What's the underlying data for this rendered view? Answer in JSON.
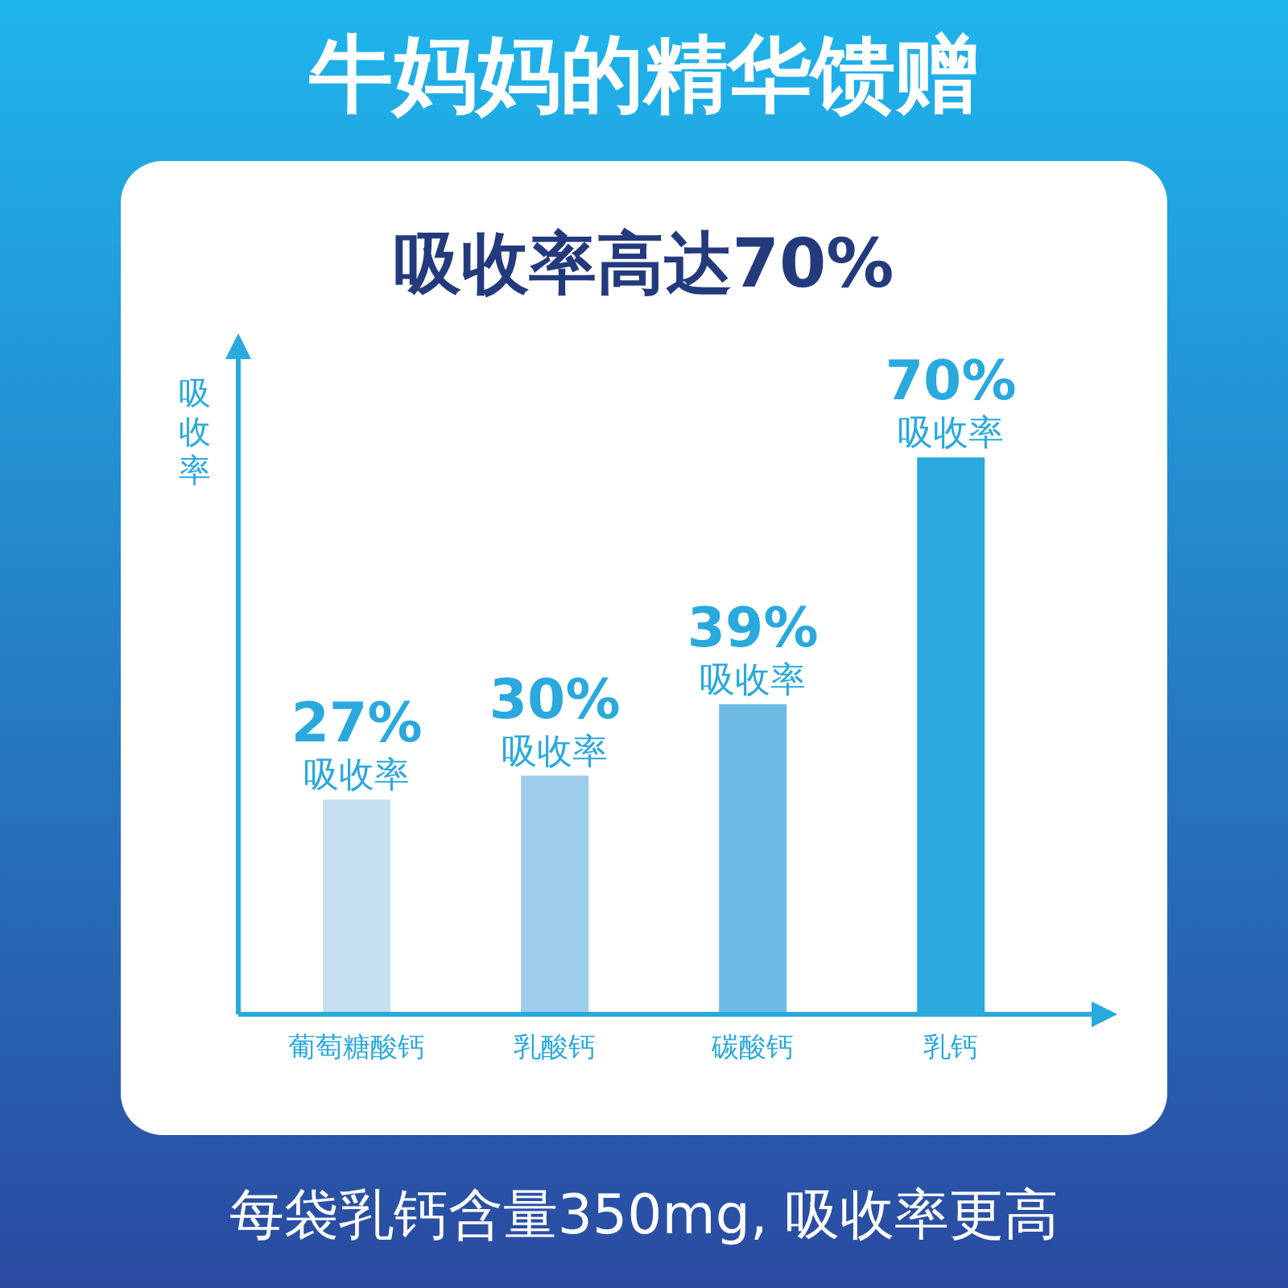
{
  "chart_data": {
    "type": "bar",
    "title": "牛妈妈的精华馈赠",
    "subtitle": "吸收率高达70%",
    "ylabel": "吸收率",
    "categories": [
      "葡萄糖酸钙",
      "乳酸钙",
      "碳酸钙",
      "乳钙"
    ],
    "values": [
      27,
      30,
      39,
      70
    ],
    "colors": [
      "#c5dff0",
      "#9dcdeb",
      "#6dbbe5",
      "#29a9dd"
    ],
    "relative": false,
    "value_labels": [
      "27%",
      "30%",
      "39%",
      "70%"
    ],
    "annotations": [
      {
        "text": "吸收率",
        "x": "葡萄糖酸钙",
        "y": 27
      },
      {
        "text": "吸收率",
        "x": "乳酸钙",
        "y": 30
      },
      {
        "text": "吸收率",
        "x": "碳酸钙",
        "y": 39
      },
      {
        "text": "吸收率",
        "x": "乳钙",
        "y": 70
      },
      "每袋乳钙含量350mg, 吸收率更高"
    ]
  }
}
